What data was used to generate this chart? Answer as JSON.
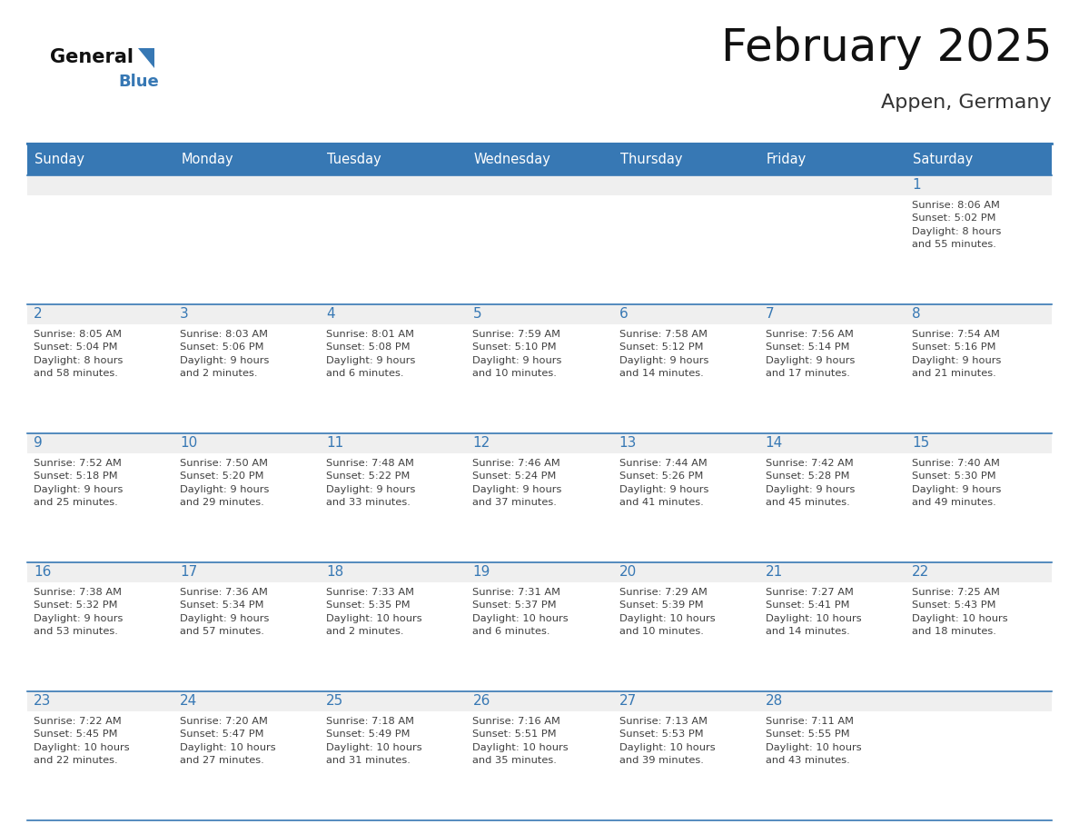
{
  "title": "February 2025",
  "subtitle": "Appen, Germany",
  "days_of_week": [
    "Sunday",
    "Monday",
    "Tuesday",
    "Wednesday",
    "Thursday",
    "Friday",
    "Saturday"
  ],
  "header_bg": "#3778B4",
  "header_text": "#FFFFFF",
  "cell_bg_top": "#EFEFEF",
  "cell_bg_bottom": "#FFFFFF",
  "grid_line_color": "#3778B4",
  "day_number_color": "#3778B4",
  "cell_text_color": "#404040",
  "title_color": "#111111",
  "subtitle_color": "#333333",
  "logo_general_color": "#111111",
  "logo_blue_color": "#3778B4",
  "weeks": [
    {
      "days": [
        {
          "date": "",
          "info": ""
        },
        {
          "date": "",
          "info": ""
        },
        {
          "date": "",
          "info": ""
        },
        {
          "date": "",
          "info": ""
        },
        {
          "date": "",
          "info": ""
        },
        {
          "date": "",
          "info": ""
        },
        {
          "date": "1",
          "info": "Sunrise: 8:06 AM\nSunset: 5:02 PM\nDaylight: 8 hours\nand 55 minutes."
        }
      ]
    },
    {
      "days": [
        {
          "date": "2",
          "info": "Sunrise: 8:05 AM\nSunset: 5:04 PM\nDaylight: 8 hours\nand 58 minutes."
        },
        {
          "date": "3",
          "info": "Sunrise: 8:03 AM\nSunset: 5:06 PM\nDaylight: 9 hours\nand 2 minutes."
        },
        {
          "date": "4",
          "info": "Sunrise: 8:01 AM\nSunset: 5:08 PM\nDaylight: 9 hours\nand 6 minutes."
        },
        {
          "date": "5",
          "info": "Sunrise: 7:59 AM\nSunset: 5:10 PM\nDaylight: 9 hours\nand 10 minutes."
        },
        {
          "date": "6",
          "info": "Sunrise: 7:58 AM\nSunset: 5:12 PM\nDaylight: 9 hours\nand 14 minutes."
        },
        {
          "date": "7",
          "info": "Sunrise: 7:56 AM\nSunset: 5:14 PM\nDaylight: 9 hours\nand 17 minutes."
        },
        {
          "date": "8",
          "info": "Sunrise: 7:54 AM\nSunset: 5:16 PM\nDaylight: 9 hours\nand 21 minutes."
        }
      ]
    },
    {
      "days": [
        {
          "date": "9",
          "info": "Sunrise: 7:52 AM\nSunset: 5:18 PM\nDaylight: 9 hours\nand 25 minutes."
        },
        {
          "date": "10",
          "info": "Sunrise: 7:50 AM\nSunset: 5:20 PM\nDaylight: 9 hours\nand 29 minutes."
        },
        {
          "date": "11",
          "info": "Sunrise: 7:48 AM\nSunset: 5:22 PM\nDaylight: 9 hours\nand 33 minutes."
        },
        {
          "date": "12",
          "info": "Sunrise: 7:46 AM\nSunset: 5:24 PM\nDaylight: 9 hours\nand 37 minutes."
        },
        {
          "date": "13",
          "info": "Sunrise: 7:44 AM\nSunset: 5:26 PM\nDaylight: 9 hours\nand 41 minutes."
        },
        {
          "date": "14",
          "info": "Sunrise: 7:42 AM\nSunset: 5:28 PM\nDaylight: 9 hours\nand 45 minutes."
        },
        {
          "date": "15",
          "info": "Sunrise: 7:40 AM\nSunset: 5:30 PM\nDaylight: 9 hours\nand 49 minutes."
        }
      ]
    },
    {
      "days": [
        {
          "date": "16",
          "info": "Sunrise: 7:38 AM\nSunset: 5:32 PM\nDaylight: 9 hours\nand 53 minutes."
        },
        {
          "date": "17",
          "info": "Sunrise: 7:36 AM\nSunset: 5:34 PM\nDaylight: 9 hours\nand 57 minutes."
        },
        {
          "date": "18",
          "info": "Sunrise: 7:33 AM\nSunset: 5:35 PM\nDaylight: 10 hours\nand 2 minutes."
        },
        {
          "date": "19",
          "info": "Sunrise: 7:31 AM\nSunset: 5:37 PM\nDaylight: 10 hours\nand 6 minutes."
        },
        {
          "date": "20",
          "info": "Sunrise: 7:29 AM\nSunset: 5:39 PM\nDaylight: 10 hours\nand 10 minutes."
        },
        {
          "date": "21",
          "info": "Sunrise: 7:27 AM\nSunset: 5:41 PM\nDaylight: 10 hours\nand 14 minutes."
        },
        {
          "date": "22",
          "info": "Sunrise: 7:25 AM\nSunset: 5:43 PM\nDaylight: 10 hours\nand 18 minutes."
        }
      ]
    },
    {
      "days": [
        {
          "date": "23",
          "info": "Sunrise: 7:22 AM\nSunset: 5:45 PM\nDaylight: 10 hours\nand 22 minutes."
        },
        {
          "date": "24",
          "info": "Sunrise: 7:20 AM\nSunset: 5:47 PM\nDaylight: 10 hours\nand 27 minutes."
        },
        {
          "date": "25",
          "info": "Sunrise: 7:18 AM\nSunset: 5:49 PM\nDaylight: 10 hours\nand 31 minutes."
        },
        {
          "date": "26",
          "info": "Sunrise: 7:16 AM\nSunset: 5:51 PM\nDaylight: 10 hours\nand 35 minutes."
        },
        {
          "date": "27",
          "info": "Sunrise: 7:13 AM\nSunset: 5:53 PM\nDaylight: 10 hours\nand 39 minutes."
        },
        {
          "date": "28",
          "info": "Sunrise: 7:11 AM\nSunset: 5:55 PM\nDaylight: 10 hours\nand 43 minutes."
        },
        {
          "date": "",
          "info": ""
        }
      ]
    }
  ]
}
